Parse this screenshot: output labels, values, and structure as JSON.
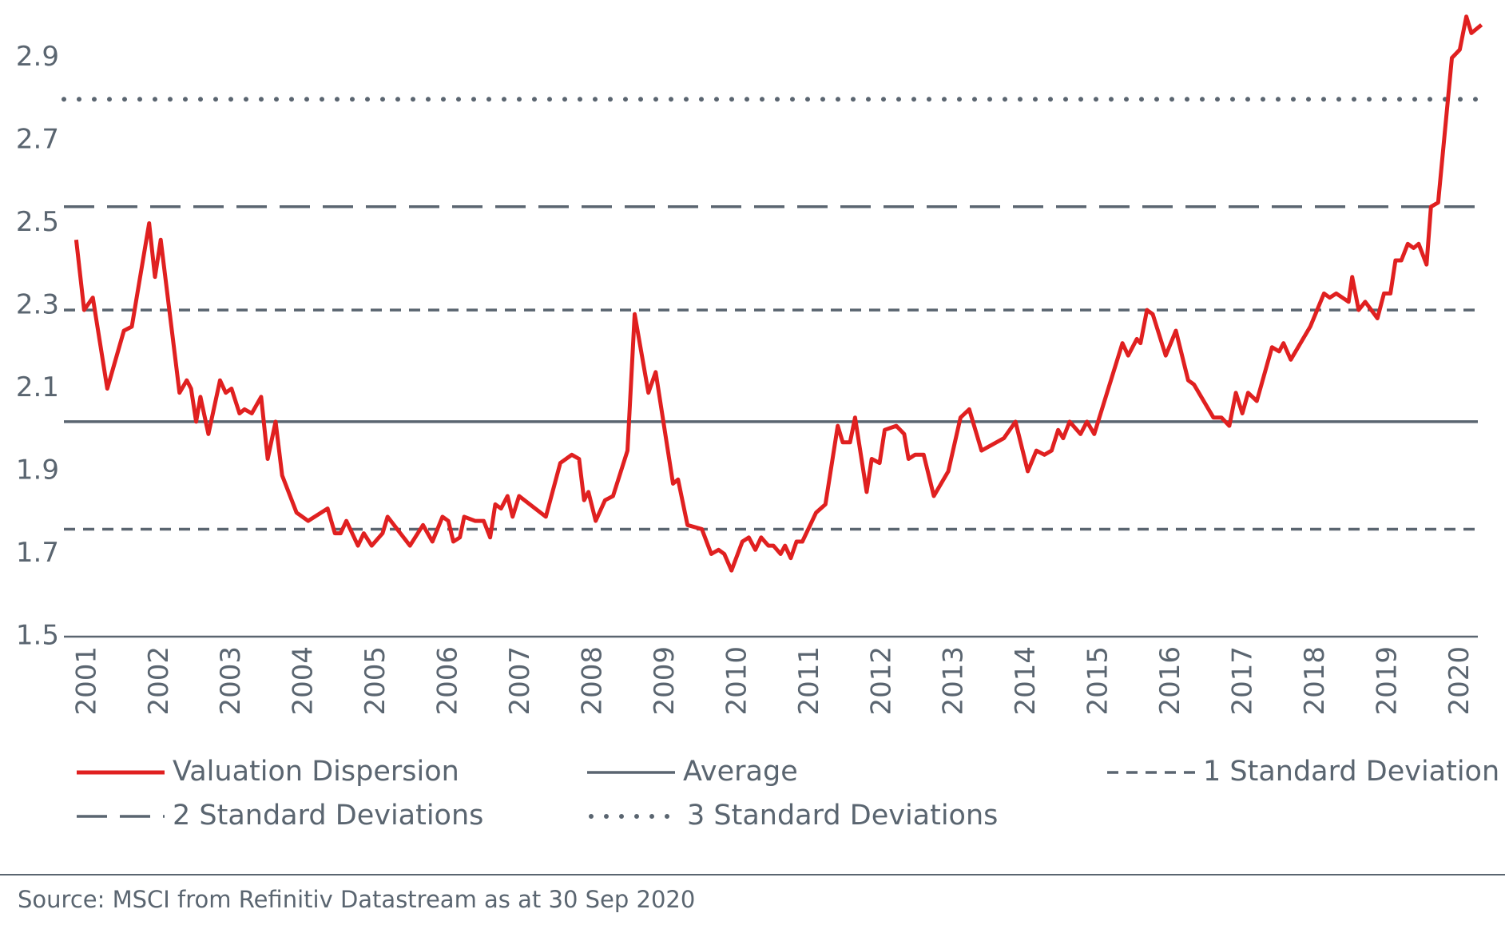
{
  "chart_data": {
    "type": "line",
    "source": "Source: MSCI from Refinitiv Datastream as at 30 Sep 2020",
    "xlim": [
      2000.67,
      2020.35
    ],
    "xticks": [
      2001,
      2002,
      2003,
      2004,
      2005,
      2006,
      2007,
      2008,
      2009,
      2010,
      2011,
      2012,
      2013,
      2014,
      2015,
      2016,
      2017,
      2018,
      2019,
      2020
    ],
    "ylim": [
      1.5,
      3.04
    ],
    "yticks": [
      1.5,
      1.7,
      1.9,
      2.1,
      2.3,
      2.5,
      2.7,
      2.9
    ],
    "x": [
      2000.84,
      2000.95,
      2001.07,
      2001.27,
      2001.5,
      2001.61,
      2001.85,
      2001.93,
      2002.01,
      2002.27,
      2002.37,
      2002.43,
      2002.5,
      2002.56,
      2002.67,
      2002.83,
      2002.91,
      2002.99,
      2003.1,
      2003.17,
      2003.27,
      2003.4,
      2003.49,
      2003.6,
      2003.69,
      2003.89,
      2004.05,
      2004.32,
      2004.42,
      2004.5,
      2004.58,
      2004.74,
      2004.82,
      2004.93,
      2005.08,
      2005.15,
      2005.46,
      2005.64,
      2005.77,
      2005.91,
      2005.99,
      2006.06,
      2006.15,
      2006.21,
      2006.36,
      2006.48,
      2006.57,
      2006.64,
      2006.72,
      2006.81,
      2006.88,
      2006.97,
      2007.34,
      2007.54,
      2007.7,
      2007.8,
      2007.87,
      2007.93,
      2008.03,
      2008.16,
      2008.27,
      2008.47,
      2008.57,
      2008.76,
      2008.86,
      2009.1,
      2009.17,
      2009.3,
      2009.5,
      2009.63,
      2009.73,
      2009.81,
      2009.91,
      2010.06,
      2010.15,
      2010.24,
      2010.32,
      2010.42,
      2010.49,
      2010.59,
      2010.65,
      2010.73,
      2010.81,
      2010.89,
      2011.08,
      2011.21,
      2011.38,
      2011.45,
      2011.55,
      2011.62,
      2011.78,
      2011.85,
      2011.96,
      2012.03,
      2012.19,
      2012.3,
      2012.36,
      2012.45,
      2012.57,
      2012.71,
      2012.91,
      2013.08,
      2013.2,
      2013.37,
      2013.68,
      2013.84,
      2014.01,
      2014.13,
      2014.24,
      2014.34,
      2014.43,
      2014.5,
      2014.59,
      2014.74,
      2014.83,
      2014.93,
      2015.32,
      2015.4,
      2015.52,
      2015.57,
      2015.66,
      2015.74,
      2015.92,
      2016.06,
      2016.23,
      2016.31,
      2016.58,
      2016.69,
      2016.8,
      2016.89,
      2016.98,
      2017.06,
      2017.18,
      2017.39,
      2017.49,
      2017.55,
      2017.65,
      2017.92,
      2018.11,
      2018.19,
      2018.28,
      2018.45,
      2018.5,
      2018.59,
      2018.68,
      2018.85,
      2018.94,
      2019.03,
      2019.1,
      2019.18,
      2019.27,
      2019.35,
      2019.42,
      2019.53,
      2019.59,
      2019.69,
      2019.88,
      2019.99,
      2020.08,
      2020.15,
      2020.29
    ],
    "series": [
      {
        "name": "Valuation Dispersion",
        "color": "#e02020",
        "values": [
          2.46,
          2.29,
          2.32,
          2.1,
          2.24,
          2.25,
          2.5,
          2.37,
          2.46,
          2.09,
          2.12,
          2.1,
          2.02,
          2.08,
          1.99,
          2.12,
          2.09,
          2.1,
          2.04,
          2.05,
          2.04,
          2.08,
          1.93,
          2.02,
          1.89,
          1.8,
          1.78,
          1.81,
          1.75,
          1.75,
          1.78,
          1.72,
          1.75,
          1.72,
          1.75,
          1.79,
          1.72,
          1.77,
          1.73,
          1.79,
          1.78,
          1.73,
          1.74,
          1.79,
          1.78,
          1.78,
          1.74,
          1.82,
          1.81,
          1.84,
          1.79,
          1.84,
          1.79,
          1.92,
          1.94,
          1.93,
          1.83,
          1.85,
          1.78,
          1.83,
          1.84,
          1.95,
          2.28,
          2.09,
          2.14,
          1.87,
          1.88,
          1.77,
          1.76,
          1.7,
          1.71,
          1.7,
          1.66,
          1.73,
          1.74,
          1.71,
          1.74,
          1.72,
          1.72,
          1.7,
          1.72,
          1.69,
          1.73,
          1.73,
          1.8,
          1.82,
          2.01,
          1.97,
          1.97,
          2.03,
          1.85,
          1.93,
          1.92,
          2.0,
          2.01,
          1.99,
          1.93,
          1.94,
          1.94,
          1.84,
          1.9,
          2.03,
          2.05,
          1.95,
          1.98,
          2.02,
          1.9,
          1.95,
          1.94,
          1.95,
          2.0,
          1.98,
          2.02,
          1.99,
          2.02,
          1.99,
          2.21,
          2.18,
          2.22,
          2.21,
          2.29,
          2.28,
          2.18,
          2.24,
          2.12,
          2.11,
          2.03,
          2.03,
          2.01,
          2.09,
          2.04,
          2.09,
          2.07,
          2.2,
          2.19,
          2.21,
          2.17,
          2.25,
          2.33,
          2.32,
          2.33,
          2.31,
          2.37,
          2.29,
          2.31,
          2.27,
          2.33,
          2.33,
          2.41,
          2.41,
          2.45,
          2.44,
          2.45,
          2.4,
          2.54,
          2.55,
          2.9,
          2.92,
          3.0,
          2.96,
          2.98
        ]
      }
    ],
    "reference_lines": [
      {
        "name": "Average",
        "color": "#5a6570",
        "style": "solid",
        "values": [
          2.02
        ]
      },
      {
        "name": "1 Standard Deviation",
        "color": "#5a6570",
        "style": "dashed",
        "values": [
          2.29,
          1.76
        ]
      },
      {
        "name": "2 Standard Deviations",
        "color": "#5a6570",
        "style": "long-dashed",
        "values": [
          2.54
        ]
      },
      {
        "name": "3 Standard Deviations",
        "color": "#5a6570",
        "style": "dotted",
        "values": [
          2.8
        ]
      }
    ]
  }
}
